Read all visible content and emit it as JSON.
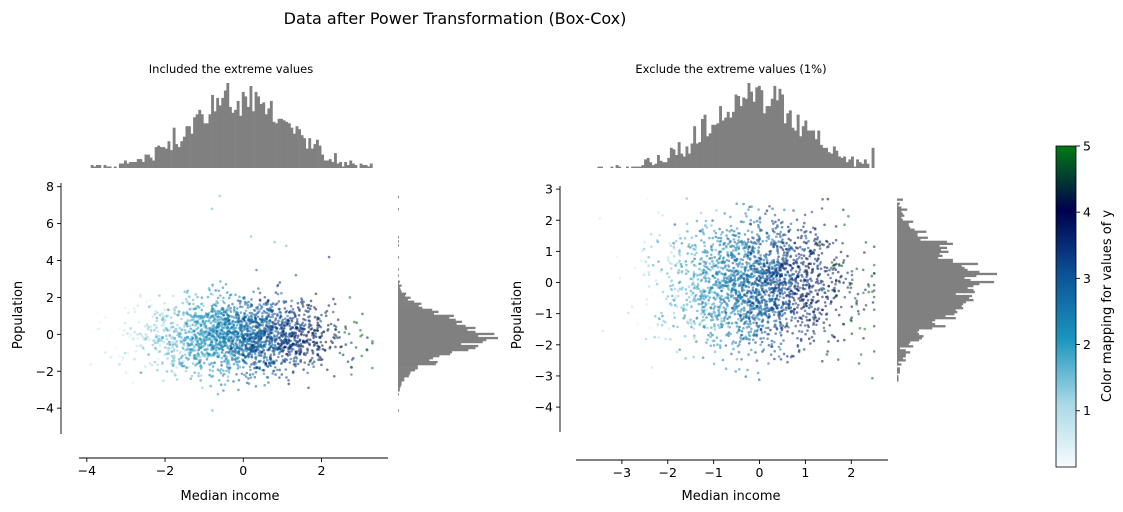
{
  "figure": {
    "suptitle": "Data after Power Transformation (Box-Cox)"
  },
  "colorbar": {
    "label": "Color mapping for values of y",
    "ticks": [
      1,
      2,
      3,
      4,
      5
    ],
    "vmin": 0.15,
    "vmax": 5.0,
    "colors": [
      "#f7fcfd",
      "#a8d8e6",
      "#1a95bd",
      "#0b5296",
      "#00004d",
      "#007a14"
    ]
  },
  "chart_data": [
    {
      "type": "scatter",
      "title": "Included the extreme values",
      "xlabel": "Median income",
      "ylabel": "Population",
      "xlim": [
        -4.2,
        3.7
      ],
      "ylim": [
        -5.4,
        8.2
      ],
      "xticks": [
        -4,
        -2,
        0,
        2
      ],
      "yticks": [
        -4,
        -2,
        0,
        2,
        4,
        6,
        8
      ],
      "marginal_histograms": {
        "x": true,
        "y": true,
        "color": "#808080"
      },
      "color_by": "y",
      "cluster": {
        "x_mean": -0.1,
        "x_sd": 1.2,
        "y_mean": -0.1,
        "y_sd": 1.0,
        "x_clip": [
          -3.9,
          3.3
        ],
        "y_clip": [
          -4.5,
          7.5
        ]
      },
      "outliers": [
        [
          -0.6,
          7.5
        ],
        [
          -0.8,
          6.8
        ],
        [
          0.2,
          5.3
        ],
        [
          0.8,
          5.0
        ],
        [
          1.1,
          4.8
        ]
      ]
    },
    {
      "type": "scatter",
      "title": "Exclude the extreme values (1%)",
      "xlabel": "Median income",
      "ylabel": "Population",
      "xlim": [
        -4.0,
        2.8
      ],
      "ylim": [
        -4.8,
        3.1
      ],
      "xticks": [
        -3,
        -2,
        -1,
        0,
        1,
        2
      ],
      "yticks": [
        -4,
        -3,
        -2,
        -1,
        0,
        1,
        2,
        3
      ],
      "marginal_histograms": {
        "x": true,
        "y": true,
        "color": "#808080"
      },
      "color_by": "y",
      "cluster": {
        "x_mean": -0.1,
        "x_sd": 1.0,
        "y_mean": -0.05,
        "y_sd": 1.0,
        "x_clip": [
          -3.7,
          2.5
        ],
        "y_clip": [
          -4.4,
          2.7
        ]
      },
      "outliers": []
    }
  ]
}
